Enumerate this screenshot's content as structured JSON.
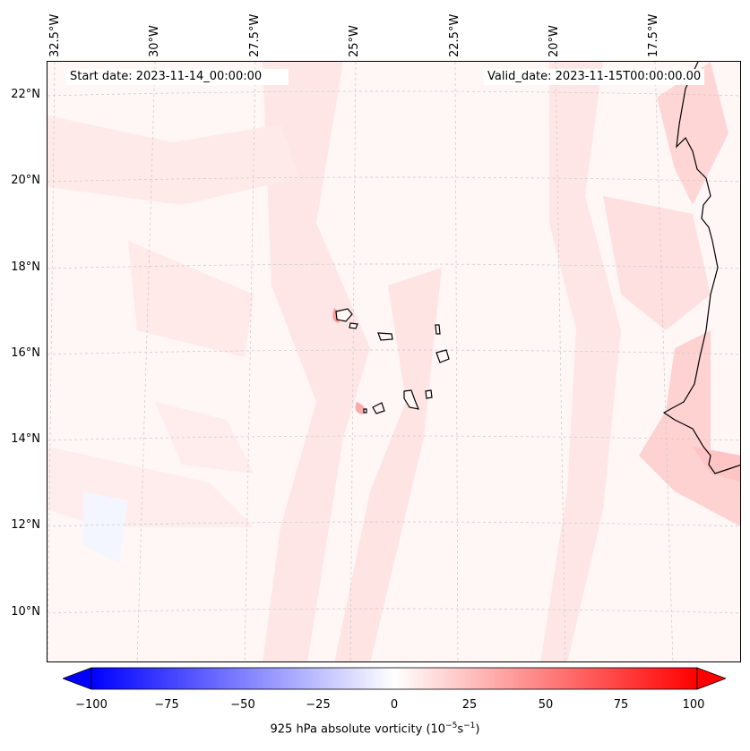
{
  "header": {
    "start_date": "Start date: 2023-11-14_00:00:00",
    "valid_date": "Valid_date: 2023-11-15T00:00:00.00"
  },
  "longitude_labels": [
    "32.5°W",
    "30°W",
    "27.5°W",
    "25°W",
    "22.5°W",
    "20°W",
    "17.5°W"
  ],
  "latitude_labels": [
    "22°N",
    "20°N",
    "18°N",
    "16°N",
    "14°N",
    "12°N",
    "10°N"
  ],
  "colorbar": {
    "ticks": [
      "−100",
      "−75",
      "−50",
      "−25",
      "0",
      "25",
      "50",
      "75",
      "100"
    ],
    "label_main": "925 hPa absolute vorticity (10",
    "label_exp1": "−5",
    "label_mid": "s",
    "label_exp2": "−1",
    "label_end": ")",
    "min": -100,
    "max": 100,
    "neg_color": "#0000ff",
    "pos_color": "#ff0000"
  },
  "map": {
    "ocean_tint": "#fff6f6",
    "coast_color": "#000000",
    "grid_color": "#c8c8c8"
  }
}
